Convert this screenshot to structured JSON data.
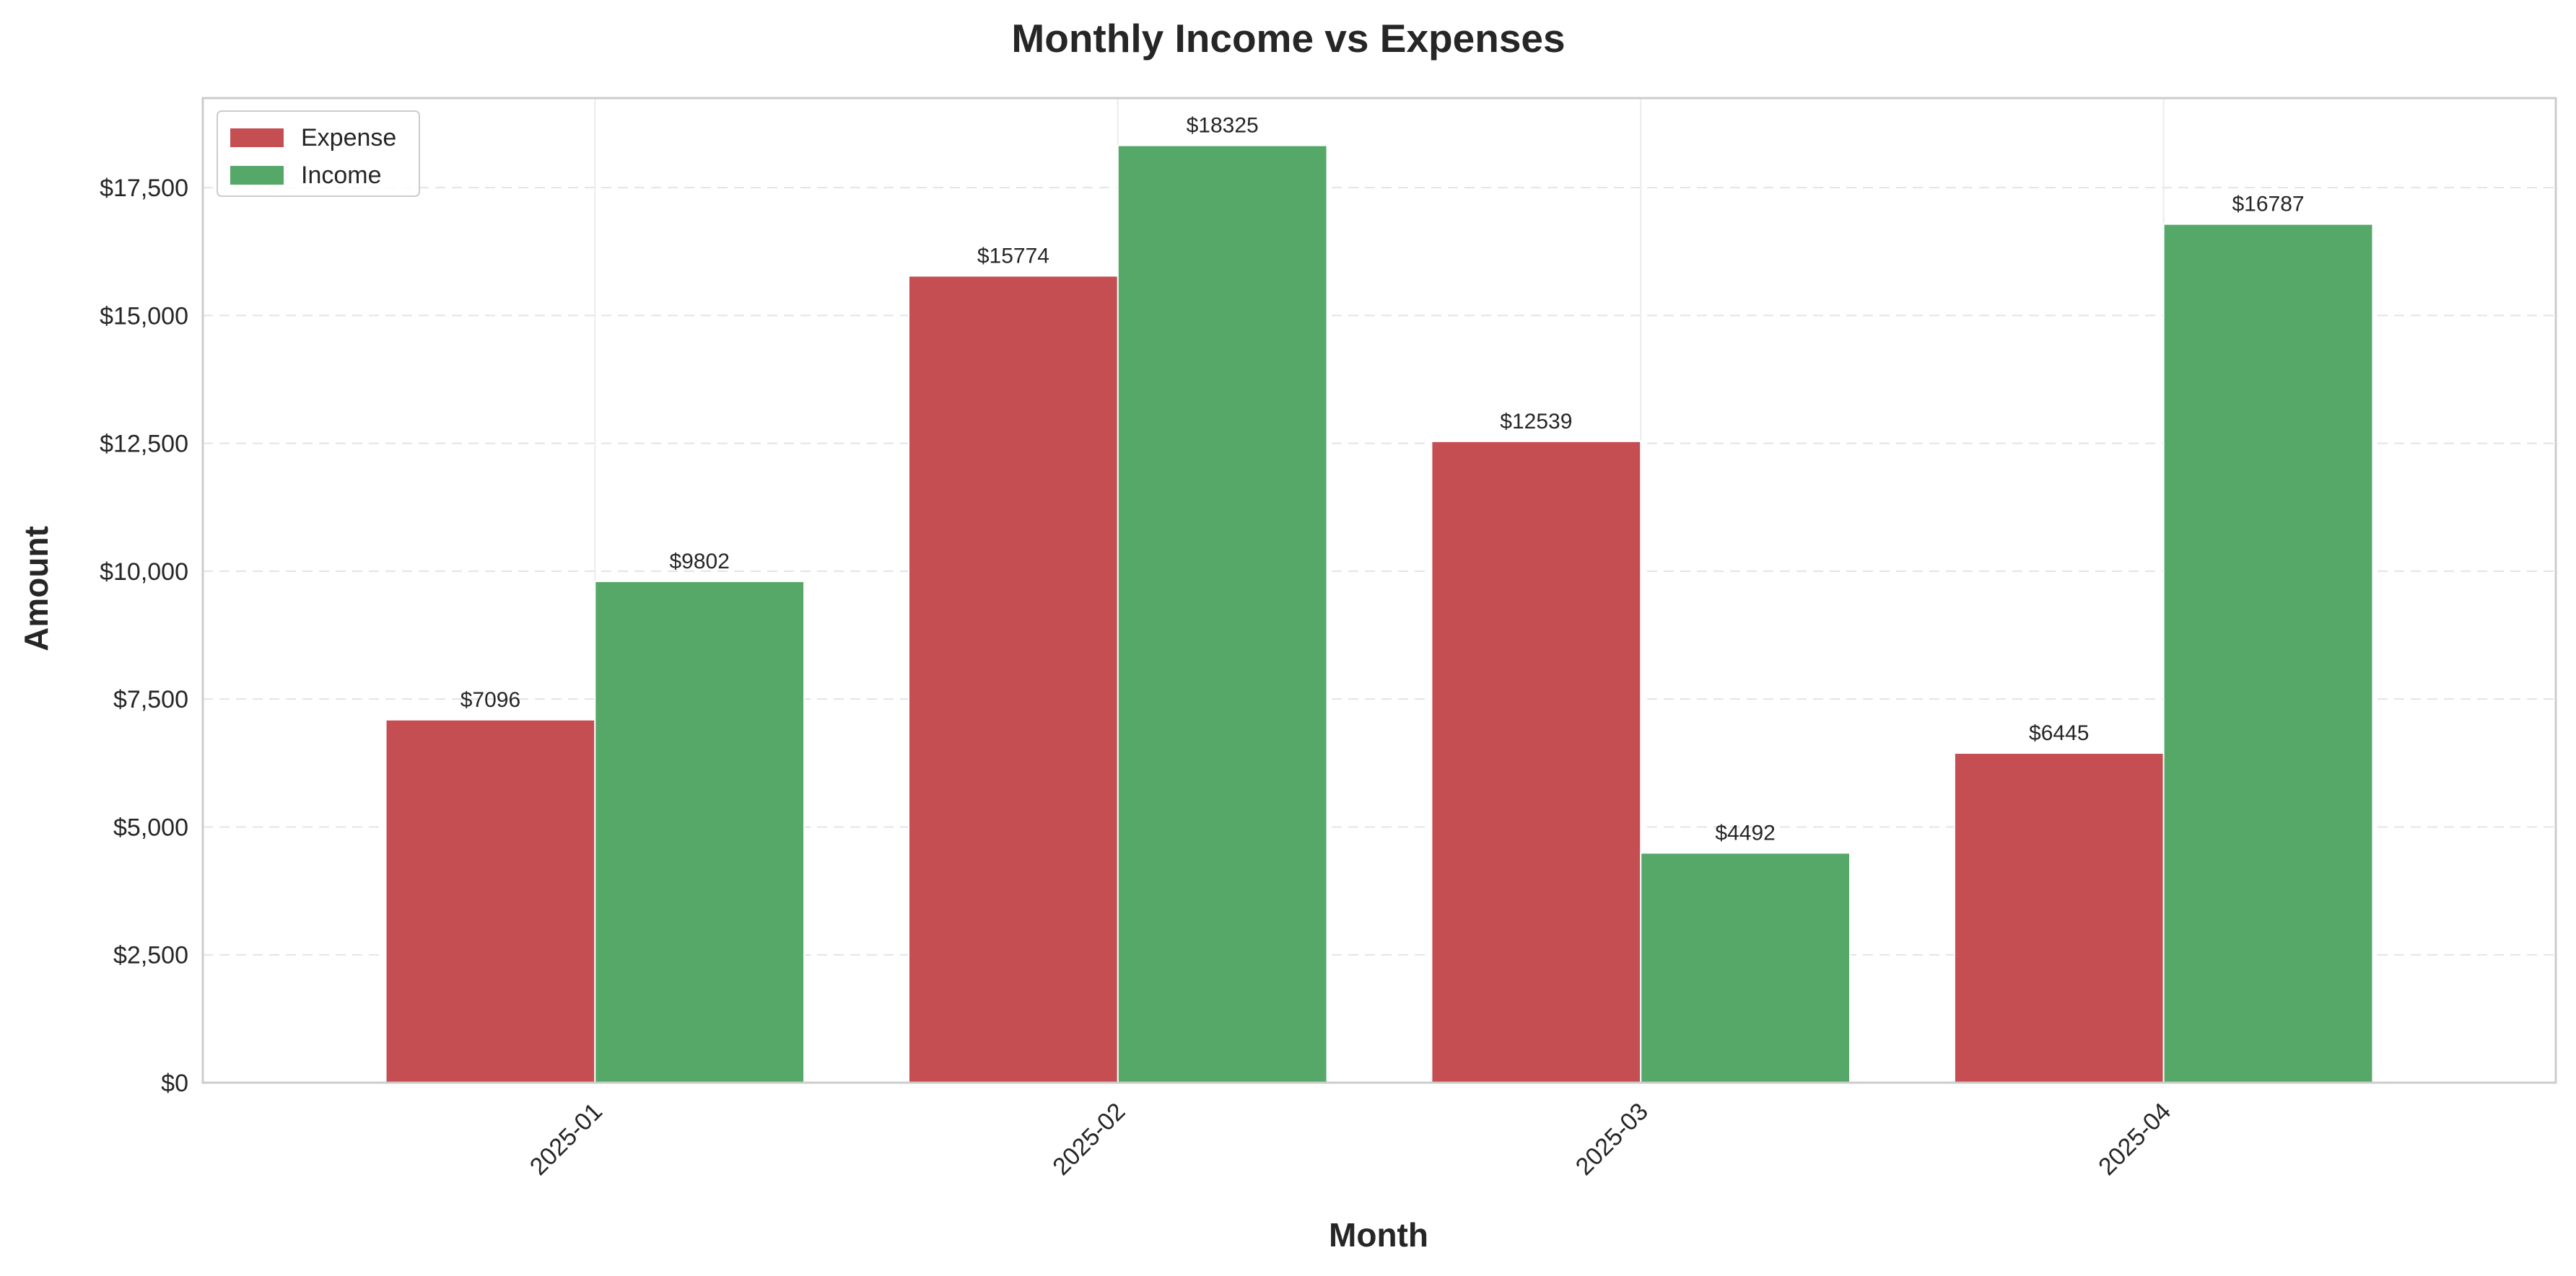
{
  "chart_data": {
    "type": "bar",
    "title": "Monthly Income vs Expenses",
    "xlabel": "Month",
    "ylabel": "Amount",
    "categories": [
      "2025-01",
      "2025-02",
      "2025-03",
      "2025-04"
    ],
    "series": [
      {
        "name": "Expense",
        "color": "#c44e52",
        "values": [
          7096,
          15774,
          12539,
          6445
        ],
        "value_labels": [
          "$7096",
          "$15774",
          "$12539",
          "$6445"
        ]
      },
      {
        "name": "Income",
        "color": "#55a868",
        "values": [
          9802,
          18325,
          4492,
          16787
        ],
        "value_labels": [
          "$9802",
          "$18325",
          "$4492",
          "$16787"
        ]
      }
    ],
    "ylim": [
      0,
      19250
    ],
    "yticks": [
      0,
      2500,
      5000,
      7500,
      10000,
      12500,
      15000,
      17500
    ],
    "ytick_labels": [
      "$0",
      "$2,500",
      "$5,000",
      "$7,500",
      "$10,000",
      "$12,500",
      "$15,000",
      "$17,500"
    ],
    "grid": true,
    "legend_position": "top-left"
  }
}
